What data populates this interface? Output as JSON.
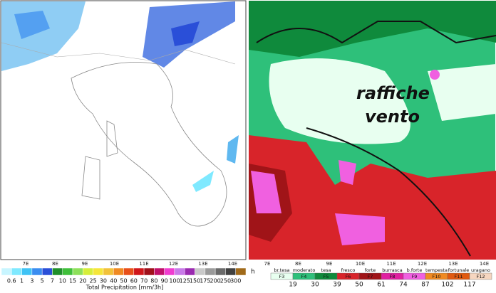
{
  "left_panel": {
    "lon_ticks": [
      "7E",
      "8E",
      "9E",
      "10E",
      "11E",
      "12E",
      "13E",
      "14E"
    ],
    "colorbar_labels": [
      0.6,
      1,
      3,
      5,
      7,
      10,
      15,
      20,
      25,
      30,
      40,
      50,
      60,
      70,
      80,
      90,
      100,
      125,
      150,
      175,
      200,
      250,
      300
    ],
    "colorbar_colors": [
      "#c8f5ff",
      "#7fe9ff",
      "#3fc3f5",
      "#3a8df0",
      "#2a4fd8",
      "#1f8f2a",
      "#3fbf3a",
      "#8de05a",
      "#d6ee3a",
      "#f5e63a",
      "#f2c23a",
      "#f08a22",
      "#e8501a",
      "#d0161a",
      "#a0101a",
      "#c0106a",
      "#f03cd0",
      "#c87ae8",
      "#9a2ab0",
      "#c9c9c9",
      "#9a9a9a",
      "#6a6a6a",
      "#404040",
      "#a06a1a"
    ],
    "colorbar_title": "Total Precipitation [mm/3h]"
  },
  "right_panel": {
    "annotation_line1": "raffiche",
    "annotation_line2": "vento",
    "lon_ticks": [
      "7E",
      "8E",
      "9E",
      "10E",
      "11E",
      "12E",
      "13E",
      "14E"
    ],
    "legend_names": [
      "br.tesa",
      "moderato",
      "tesa",
      "fresco",
      "forte",
      "burrasca",
      "b.forte",
      "tempesta",
      "fortunale",
      "uragano"
    ],
    "legend_forces": [
      "F3",
      "F4",
      "F5",
      "F6",
      "F7",
      "F8",
      "F9",
      "F10",
      "F11",
      "F12"
    ],
    "legend_colors": [
      "#e8fff0",
      "#2ec07a",
      "#0f8a3c",
      "#d8242a",
      "#a01418",
      "#e020a0",
      "#f060e0",
      "#f08a22",
      "#e05a10",
      "#f6d6c0"
    ],
    "legend_speeds": [
      19,
      30,
      39,
      50,
      61,
      74,
      87,
      102,
      117
    ],
    "unit": "h"
  }
}
